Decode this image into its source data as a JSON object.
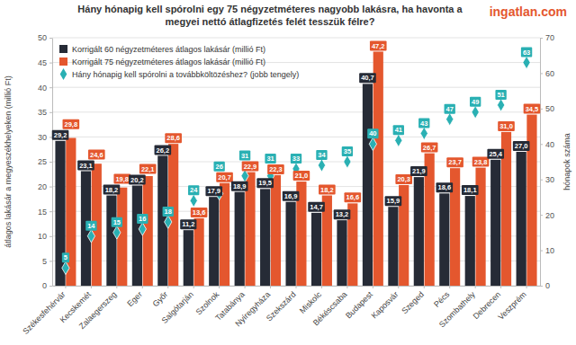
{
  "chart_data": {
    "type": "bar",
    "title": "Hány hónapig kell spórolni egy 75 négyzetméteres nagyobb lakásra, ha havonta a megyei nettó átlagfizetés felét tesszük félre?",
    "annotations": [
      {
        "text": "ingatlan.com"
      }
    ],
    "ylabel": "átlagos lakásár a megyeszékhelyeken (millió Ft)",
    "y2label": "hónapok száma",
    "categories": [
      "Székesfehérvár",
      "Kecskemét",
      "Zalaegerszeg",
      "Eger",
      "Győr",
      "Salgótarján",
      "Szolnok",
      "Tatabánya",
      "Nyíregyháza",
      "Szekszárd",
      "Miskolc",
      "Békéscsaba",
      "Budapest",
      "Kaposvár",
      "Szeged",
      "Pécs",
      "Szombathely",
      "Debrecen",
      "Veszprém"
    ],
    "series": [
      {
        "name": "Korrigált 60 négyzetméteres átlagos lakásár (millió Ft)",
        "color": "#262b36",
        "values": [
          29.2,
          23.1,
          18.2,
          20.2,
          26.2,
          11.2,
          17.9,
          18.9,
          19.5,
          16.9,
          14.7,
          13.2,
          40.7,
          15.9,
          21.9,
          18.6,
          18.1,
          25.4,
          27.0
        ],
        "value_labels": [
          "29,2",
          "23,1",
          "18,2",
          "20,2",
          "26,2",
          "11,2",
          "17,9",
          "18,9",
          "19,5",
          "16,9",
          "14,7",
          "13,2",
          "40,7",
          "15,9",
          "21,9",
          "18,6",
          "18,1",
          "25,4",
          "27,0"
        ]
      },
      {
        "name": "Korrigált 75 négyzetméteres átlagos lakásár (millió Ft)",
        "color": "#e4572e",
        "values": [
          29.8,
          24.6,
          19.8,
          22.1,
          28.6,
          13.6,
          20.7,
          22.9,
          22.3,
          21.0,
          18.2,
          16.6,
          47.2,
          20.3,
          26.7,
          23.7,
          23.8,
          31.0,
          34.5
        ],
        "value_labels": [
          "29,8",
          "24,6",
          "19,8",
          "22,1",
          "28,6",
          "13,6",
          "20,7",
          "22,9",
          "22,3",
          "21,0",
          "18,2",
          "16,6",
          "47,2",
          "20,3",
          "26,7",
          "23,7",
          "23,8",
          "31,0",
          "34,5"
        ]
      },
      {
        "name": "Hány hónapig kell spórolni a továbbköltözéshez? (jobb tengely)",
        "color": "#2ab0b3",
        "type": "scatter",
        "marker": "diamond",
        "axis": "y2",
        "values": [
          5,
          14,
          15,
          16,
          18,
          24,
          26,
          31,
          31,
          33,
          34,
          35,
          40,
          41,
          43,
          47,
          49,
          51,
          63
        ]
      }
    ],
    "ylim": [
      0,
      50
    ],
    "yticks": [
      0,
      5,
      10,
      15,
      20,
      25,
      30,
      35,
      40,
      45,
      50
    ],
    "y2lim": [
      0,
      70
    ],
    "y2ticks": [
      0,
      10,
      20,
      30,
      40,
      50,
      60,
      70
    ],
    "grid": true,
    "legend": "upper left",
    "data_labels": true
  }
}
